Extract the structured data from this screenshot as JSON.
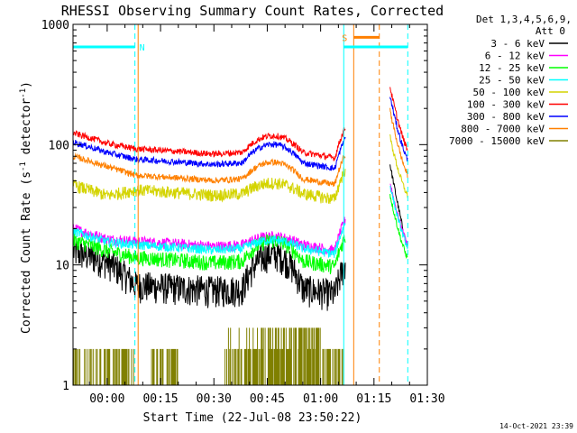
{
  "chart_data": {
    "type": "line",
    "title": "RHESSI Observing Summary Count Rates, Corrected",
    "xlabel": "Start Time (22-Jul-08 23:50:22)",
    "ylabel_main": "Corrected Count Rate (s",
    "ylabel_sup1": "-1",
    "ylabel_mid": " detector",
    "ylabel_sup2": "-1",
    "ylabel_end": ")",
    "yscale": "log",
    "ylim": [
      1,
      1000
    ],
    "xlim_min": [
      -9.6,
      90
    ],
    "x_tick_min": [
      0,
      15,
      30,
      45,
      60,
      75,
      90
    ],
    "x_tick_labels": [
      "00:00",
      "00:15",
      "00:30",
      "00:45",
      "01:00",
      "01:15",
      "01:30"
    ],
    "y_ticks": [
      1,
      10,
      100,
      1000
    ],
    "y_tick_labels": [
      "1",
      "10",
      "100",
      "1000"
    ],
    "detectors_label": "Det 1,3,4,5,6,9,",
    "attenuator_label": "Att 0",
    "timestamp": "14-Oct-2021 23:39",
    "legend_position": "right",
    "series": [
      {
        "name": "3 - 6 keV",
        "color": "#000000",
        "base": 6.5,
        "hump": 1.9,
        "jit": 0.1,
        "pre": 13
      },
      {
        "name": "6 - 12 keV",
        "color": "#ff00ff",
        "base": 15,
        "hump": 1.15,
        "jit": 0.035,
        "pre": 20
      },
      {
        "name": "12 - 25 keV",
        "color": "#00ff00",
        "base": 11,
        "hump": 1.45,
        "jit": 0.05,
        "pre": 16
      },
      {
        "name": "25 - 50 keV",
        "color": "#00ffff",
        "base": 14,
        "hump": 1.15,
        "jit": 0.03,
        "pre": 19
      },
      {
        "name": "50 - 100 keV",
        "color": "#d4d400",
        "base": 40,
        "hump": 1.2,
        "jit": 0.04,
        "pre": 46
      },
      {
        "name": "100 - 300 keV",
        "color": "#ff0000",
        "base": 88,
        "hump": 1.35,
        "jit": 0.02,
        "pre": 125
      },
      {
        "name": "300 - 800 keV",
        "color": "#0000ff",
        "base": 72,
        "hump": 1.4,
        "jit": 0.02,
        "pre": 105
      },
      {
        "name": "800 - 7000 keV",
        "color": "#ff8000",
        "base": 53,
        "hump": 1.35,
        "jit": 0.02,
        "pre": 80
      },
      {
        "name": "7000 - 15000 keV",
        "color": "#808000",
        "base": 1.0,
        "hump": 1.0,
        "jit": 0,
        "pre": 1
      }
    ],
    "annotations": {
      "n_label": "N",
      "s_label": "S",
      "cyan_vlines_min": [
        -9.6,
        7.8,
        66.5,
        84.5
      ],
      "orange_vlines_min": [
        8.7,
        69.3
      ],
      "orange_dashed_min": [
        76.5
      ],
      "segments": [
        {
          "x0": -9.6,
          "x1": 7.8,
          "level": 650,
          "color": "#00ffff"
        },
        {
          "x0": 66.5,
          "x1": 84.5,
          "level": 650,
          "color": "#00ffff"
        },
        {
          "x0": 69.3,
          "x1": 76.5,
          "level": 780,
          "color": "#ff8000"
        }
      ]
    }
  }
}
